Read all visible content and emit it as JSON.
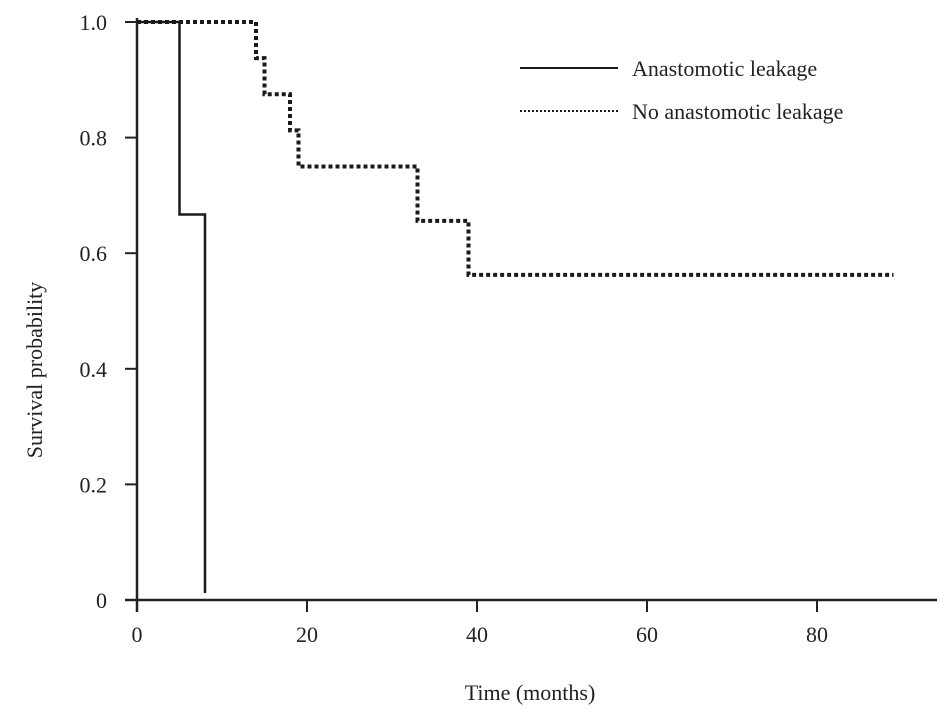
{
  "chart_data": {
    "type": "line",
    "step": true,
    "title": "",
    "xlabel": "Time (months)",
    "ylabel": "Survival probability",
    "xlim": [
      0,
      92
    ],
    "ylim": [
      0,
      1.0
    ],
    "x_ticks": [
      0,
      20,
      40,
      60,
      80
    ],
    "x_tick_labels": [
      "0",
      "20",
      "40",
      "60",
      "80"
    ],
    "y_ticks": [
      0,
      0.2,
      0.4,
      0.6,
      0.8,
      1.0
    ],
    "y_tick_labels": [
      "0",
      "0.2",
      "0.4",
      "0.6",
      "0.8",
      "1.0"
    ],
    "grid": false,
    "legend_position": "top-right",
    "series": [
      {
        "name": "Anastomotic leakage",
        "style": "solid",
        "color": "#1a1a1a",
        "points": [
          [
            0,
            1.0
          ],
          [
            5,
            1.0
          ],
          [
            5,
            0.667
          ],
          [
            8,
            0.667
          ],
          [
            8,
            0.0
          ]
        ]
      },
      {
        "name": "No anastomotic leakage",
        "style": "dotted",
        "color": "#1a1a1a",
        "points": [
          [
            0,
            1.0
          ],
          [
            14,
            1.0
          ],
          [
            14,
            0.9375
          ],
          [
            15,
            0.9375
          ],
          [
            15,
            0.875
          ],
          [
            18,
            0.875
          ],
          [
            18,
            0.8125
          ],
          [
            19,
            0.8125
          ],
          [
            19,
            0.75
          ],
          [
            33,
            0.75
          ],
          [
            33,
            0.656
          ],
          [
            39,
            0.656
          ],
          [
            39,
            0.5625
          ],
          [
            89,
            0.5625
          ]
        ]
      }
    ]
  }
}
